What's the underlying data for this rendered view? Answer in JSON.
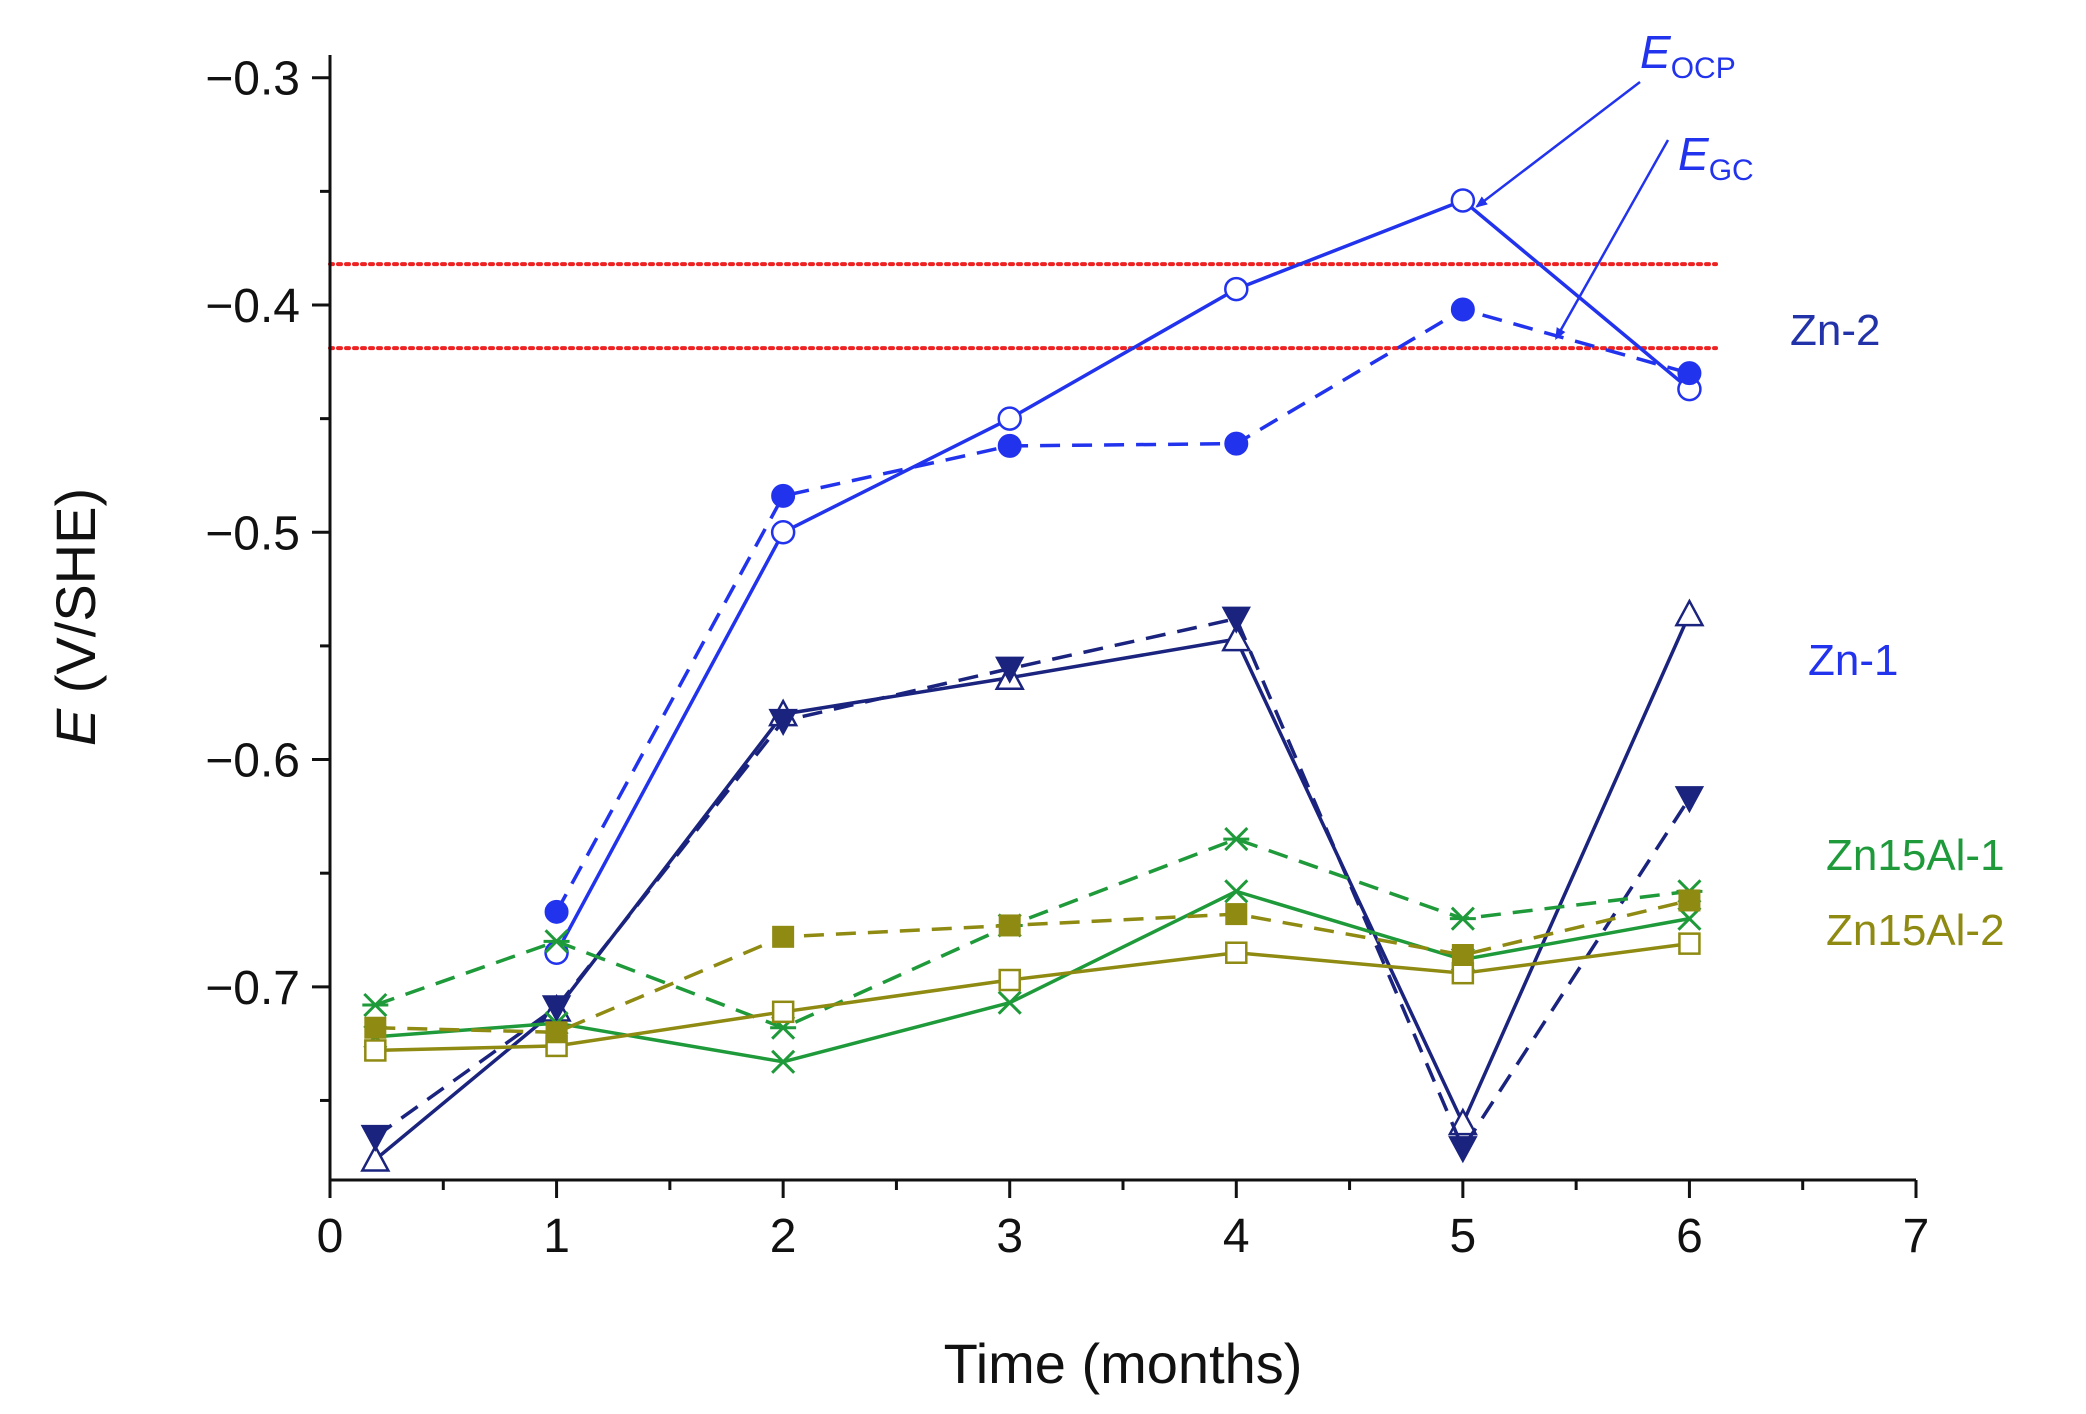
{
  "chart_data": {
    "type": "line",
    "title": "",
    "xlabel": "Time (months)",
    "ylabel_symbol": "E",
    "ylabel_unit": " (V/SHE)",
    "xlim": [
      0,
      7
    ],
    "ylim": [
      -0.785,
      -0.29
    ],
    "x_ticks": [
      0,
      1,
      2,
      3,
      4,
      5,
      6,
      7
    ],
    "x_tick_labels": [
      "0",
      "1",
      "2",
      "3",
      "4",
      "5",
      "6",
      "7"
    ],
    "y_ticks": [
      -0.3,
      -0.4,
      -0.5,
      -0.6,
      -0.7
    ],
    "y_tick_labels": [
      "−0.3",
      "−0.4",
      "−0.5",
      "−0.6",
      "−0.7"
    ],
    "grid": false,
    "reference_lines": [
      {
        "y": -0.382,
        "color": "#ee2222",
        "style": "dotted"
      },
      {
        "y": -0.419,
        "color": "#ee2222",
        "style": "dotted"
      }
    ],
    "series": [
      {
        "sample": "Zn-2",
        "quantity": "OCP",
        "color": "#2233ee",
        "dash": false,
        "marker": "open-circle",
        "x": [
          1,
          2,
          3,
          4,
          5,
          6
        ],
        "y": [
          -0.685,
          -0.5,
          -0.45,
          -0.393,
          -0.354,
          -0.437
        ]
      },
      {
        "sample": "Zn-2",
        "quantity": "GC",
        "color": "#2233ee",
        "dash": true,
        "marker": "filled-circle",
        "x": [
          1,
          2,
          3,
          4,
          5,
          6
        ],
        "y": [
          -0.667,
          -0.484,
          -0.462,
          -0.461,
          -0.402,
          -0.43
        ]
      },
      {
        "sample": "Zn-1",
        "quantity": "OCP",
        "color": "#1a237e",
        "dash": false,
        "marker": "open-triangle",
        "x": [
          0.2,
          1,
          2,
          3,
          4,
          5,
          6
        ],
        "y": [
          -0.776,
          -0.71,
          -0.58,
          -0.564,
          -0.547,
          -0.76,
          -0.536
        ]
      },
      {
        "sample": "Zn-1",
        "quantity": "GC",
        "color": "#1a237e",
        "dash": true,
        "marker": "filled-down-triangle",
        "x": [
          0.2,
          1,
          2,
          3,
          4,
          5,
          6
        ],
        "y": [
          -0.766,
          -0.709,
          -0.583,
          -0.56,
          -0.538,
          -0.771,
          -0.617
        ]
      },
      {
        "sample": "Zn15Al-1",
        "quantity": "OCP",
        "color": "#1f9a3a",
        "dash": false,
        "marker": "x",
        "x": [
          0.2,
          1,
          2,
          3,
          4,
          5,
          6
        ],
        "y": [
          -0.722,
          -0.716,
          -0.733,
          -0.707,
          -0.658,
          -0.688,
          -0.67
        ]
      },
      {
        "sample": "Zn15Al-1",
        "quantity": "GC",
        "color": "#1f9a3a",
        "dash": true,
        "marker": "star",
        "x": [
          0.2,
          1,
          2,
          3,
          4,
          5,
          6
        ],
        "y": [
          -0.708,
          -0.68,
          -0.718,
          -0.673,
          -0.635,
          -0.67,
          -0.658
        ]
      },
      {
        "sample": "Zn15Al-2",
        "quantity": "OCP",
        "color": "#8f8a12",
        "dash": false,
        "marker": "open-square",
        "x": [
          0.2,
          1,
          2,
          3,
          4,
          5,
          6
        ],
        "y": [
          -0.728,
          -0.726,
          -0.711,
          -0.697,
          -0.685,
          -0.694,
          -0.681
        ]
      },
      {
        "sample": "Zn15Al-2",
        "quantity": "GC",
        "color": "#8f8a12",
        "dash": true,
        "marker": "filled-square",
        "x": [
          0.2,
          1,
          2,
          3,
          4,
          5,
          6
        ],
        "y": [
          -0.718,
          -0.72,
          -0.678,
          -0.673,
          -0.668,
          -0.686,
          -0.662
        ]
      }
    ],
    "series_labels": [
      {
        "text": "Zn-2",
        "color": "#2233aa"
      },
      {
        "text": "Zn-1",
        "color": "#2233ee"
      },
      {
        "text": "Zn15Al-1",
        "color": "#1f9a3a"
      },
      {
        "text": "Zn15Al-2",
        "color": "#8f8a12"
      }
    ],
    "annotations": [
      {
        "symbol": "E",
        "subscript": "OCP",
        "color": "#2233ee",
        "points_to": {
          "x": 5,
          "y": -0.354
        }
      },
      {
        "symbol": "E",
        "subscript": "GC",
        "color": "#2233ee",
        "points_to": {
          "x": 5.35,
          "y": -0.412
        }
      }
    ]
  }
}
